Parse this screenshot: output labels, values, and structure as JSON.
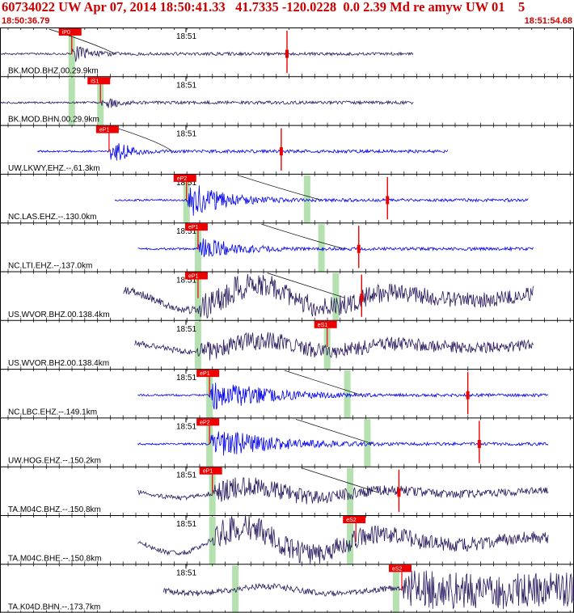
{
  "header": {
    "title": "60734022 UW Apr 07, 2014 18:50:41.33   41.7335 -120.0228  0.0 2.39 Md re amyw UW 01    5",
    "start_time": "18:50:36.79",
    "end_time": "18:51:54.68",
    "minute_label": "18:51"
  },
  "colors": {
    "header_text": "#cc0000",
    "trace_dark": "#2a1a5e",
    "trace_blue": "#0000ee",
    "pick_box": "#ee0000",
    "arrival_band": "#b5e0b0",
    "marker": "#ee0000"
  },
  "traces": [
    {
      "label": "BK.MOD.BHZ.00.29.9km",
      "color": "dark",
      "start": 0.0,
      "end": 0.72,
      "onset": 0.125,
      "amp": 0.28,
      "pre": 0.02,
      "decay": 5,
      "low": 0,
      "picks": [
        {
          "text": "iP0",
          "pos": 0.125
        }
      ],
      "bands": [
        0.125
      ],
      "curve": [
        0.17,
        0.2
      ],
      "markers": [
        0.5
      ]
    },
    {
      "label": "BK.MOD.BHN.00.29.9km",
      "color": "dark",
      "start": 0.0,
      "end": 0.72,
      "onset": 0.175,
      "amp": 0.24,
      "pre": 0.02,
      "decay": 6,
      "low": 0,
      "picks": [
        {
          "text": "iS1",
          "pos": 0.175
        }
      ],
      "bands": [
        0.125,
        0.175
      ],
      "curve": [],
      "markers": []
    },
    {
      "label": "UW.LKWY.EHZ.--.61.3km",
      "color": "blue",
      "start": 0.065,
      "end": 0.78,
      "onset": 0.19,
      "amp": 0.38,
      "pre": 0.02,
      "decay": 5,
      "low": 0,
      "picks": [
        {
          "text": "eP1",
          "pos": 0.19
        }
      ],
      "bands": [],
      "curve": [
        0.28,
        0.3
      ],
      "markers": [
        0.49
      ]
    },
    {
      "label": "NC.LAS.EHZ.--.130.0km",
      "color": "blue",
      "start": 0.2,
      "end": 0.92,
      "onset": 0.325,
      "amp": 0.42,
      "pre": 0.02,
      "decay": 2.2,
      "low": 0,
      "picks": [
        {
          "text": "eP2",
          "pos": 0.325
        }
      ],
      "bands": [
        0.325,
        0.535
      ],
      "curve": [
        0.5,
        0.56
      ],
      "markers": [
        0.675
      ]
    },
    {
      "label": "NC.LTI.EHZ.--.137.0km",
      "color": "blue",
      "start": 0.24,
      "end": 0.93,
      "onset": 0.345,
      "amp": 0.3,
      "pre": 0.02,
      "decay": 2.2,
      "low": 0,
      "picks": [
        {
          "text": "eP1",
          "pos": 0.345
        }
      ],
      "bands": [
        0.345,
        0.56
      ],
      "curve": [
        0.54,
        0.6
      ],
      "markers": [
        0.625
      ]
    },
    {
      "label": "US.WVOR.BHZ.00.138.4km",
      "color": "dark",
      "start": 0.215,
      "end": 0.93,
      "onset": 0.345,
      "amp": 0.3,
      "pre": 0.08,
      "decay": 0.3,
      "low": 0.28,
      "picks": [
        {
          "text": "eP1",
          "pos": 0.345
        }
      ],
      "bands": [
        0.345,
        0.585
      ],
      "curve": [
        0.55,
        0.6
      ],
      "markers": [
        0.63
      ]
    },
    {
      "label": "US.WVOR.BH2.00.138.4km",
      "color": "dark",
      "start": 0.235,
      "end": 0.93,
      "onset": 0.345,
      "amp": 0.22,
      "pre": 0.06,
      "decay": 0.3,
      "low": 0.12,
      "picks": [
        {
          "text": "eS1",
          "pos": 0.57
        }
      ],
      "bands": [
        0.345,
        0.57
      ],
      "curve": [],
      "markers": []
    },
    {
      "label": "NC.LBC.EHZ.--.149.1km",
      "color": "blue",
      "start": 0.24,
      "end": 0.955,
      "onset": 0.365,
      "amp": 0.4,
      "pre": 0.02,
      "decay": 1.6,
      "low": 0,
      "picks": [
        {
          "text": "eP1",
          "pos": 0.365
        }
      ],
      "bands": [
        0.365,
        0.605
      ],
      "curve": [
        0.58,
        0.63
      ],
      "markers": [
        0.815
      ]
    },
    {
      "label": "UW.HOG.EHZ.--.150.2km",
      "color": "blue",
      "start": 0.24,
      "end": 0.955,
      "onset": 0.365,
      "amp": 0.38,
      "pre": 0.02,
      "decay": 1.4,
      "low": 0,
      "picks": [
        {
          "text": "eP2",
          "pos": 0.365
        }
      ],
      "bands": [
        0.365,
        0.64
      ],
      "curve": [
        0.6,
        0.65
      ],
      "markers": [
        0.835
      ]
    },
    {
      "label": "TA.M04C.BHZ.--.150.8km",
      "color": "dark",
      "start": 0.24,
      "end": 0.955,
      "onset": 0.37,
      "amp": 0.26,
      "pre": 0.05,
      "decay": 0.6,
      "low": 0.12,
      "picks": [
        {
          "text": "eP1",
          "pos": 0.37
        }
      ],
      "bands": [
        0.37,
        0.61
      ],
      "curve": [
        0.61,
        0.66
      ],
      "markers": [
        0.695
      ]
    },
    {
      "label": "TA.M04C.BHE.--.150.8km",
      "color": "dark",
      "start": 0.24,
      "end": 0.955,
      "onset": 0.37,
      "amp": 0.3,
      "pre": 0.05,
      "decay": 0.3,
      "low": 0.3,
      "picks": [
        {
          "text": "eS2",
          "pos": 0.62
        }
      ],
      "bands": [
        0.37,
        0.61
      ],
      "curve": [],
      "markers": []
    },
    {
      "label": "TA.K04D.BHN.--.173.7km",
      "color": "dark",
      "start": 0.285,
      "end": 1.0,
      "onset": 0.7,
      "amp": 0.42,
      "pre": 0.06,
      "decay": 0.1,
      "low": 0.08,
      "picks": [
        {
          "text": "eS2",
          "pos": 0.7
        }
      ],
      "bands": [
        0.41,
        0.69
      ],
      "curve": [],
      "markers": []
    }
  ]
}
